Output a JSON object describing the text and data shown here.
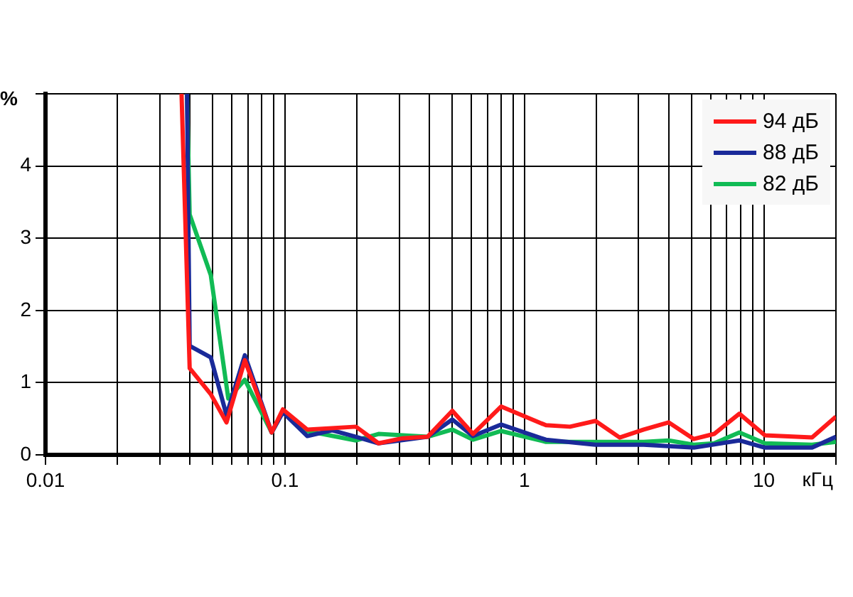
{
  "chart_data": {
    "type": "line",
    "xlabel": "кГц",
    "ylabel": "%",
    "log": "x",
    "grid": true,
    "legend": "top right",
    "marker": "none",
    "line_style": "solid",
    "xlim": [
      0.01,
      20
    ],
    "ylim": [
      0,
      5
    ],
    "xticks": [
      0.01,
      {
        "value": 0.02,
        "label": null
      },
      {
        "value": 0.03,
        "label": null
      },
      {
        "value": 0.04,
        "label": null
      },
      {
        "value": 0.05,
        "label": null
      },
      {
        "value": 0.06,
        "label": null
      },
      {
        "value": 0.07,
        "label": null
      },
      {
        "value": 0.08,
        "label": null
      },
      {
        "value": 0.09,
        "label": null
      },
      0.1,
      {
        "value": 0.2,
        "label": null
      },
      {
        "value": 0.3,
        "label": null
      },
      {
        "value": 0.4,
        "label": null
      },
      {
        "value": 0.5,
        "label": null
      },
      {
        "value": 0.6,
        "label": null
      },
      {
        "value": 0.7,
        "label": null
      },
      {
        "value": 0.8,
        "label": null
      },
      {
        "value": 0.9,
        "label": null
      },
      1,
      {
        "value": 2,
        "label": null
      },
      {
        "value": 3,
        "label": null
      },
      {
        "value": 4,
        "label": null
      },
      {
        "value": 5,
        "label": null
      },
      {
        "value": 6,
        "label": null
      },
      {
        "value": 7,
        "label": null
      },
      {
        "value": 8,
        "label": null
      },
      {
        "value": 9,
        "label": null
      },
      10,
      {
        "value": 20,
        "label": null
      }
    ],
    "yticks": [
      0,
      1,
      2,
      3,
      4,
      {
        "value": 5,
        "label": null
      }
    ],
    "series": [
      {
        "name": "94 дБ",
        "color": "#ff1a1a",
        "x": [
          0.037,
          0.04,
          0.049,
          0.057,
          0.068,
          0.088,
          0.098,
          0.124,
          0.198,
          0.246,
          0.31,
          0.394,
          0.5,
          0.61,
          0.8,
          1.23,
          1.55,
          1.98,
          2.5,
          3.15,
          4,
          5.1,
          6.2,
          7.9,
          10.1,
          15.9,
          20
        ],
        "values": [
          5,
          1.2,
          0.84,
          0.45,
          1.31,
          0.31,
          0.63,
          0.35,
          0.39,
          0.16,
          0.23,
          0.25,
          0.61,
          0.29,
          0.67,
          0.41,
          0.39,
          0.47,
          0.24,
          0.35,
          0.45,
          0.22,
          0.29,
          0.57,
          0.27,
          0.24,
          0.53
        ]
      },
      {
        "name": "88 дБ",
        "color": "#1a2a99",
        "x": [
          0.039,
          0.04,
          0.049,
          0.057,
          0.068,
          0.088,
          0.098,
          0.124,
          0.157,
          0.198,
          0.246,
          0.394,
          0.5,
          0.61,
          0.8,
          1.23,
          1.98,
          3.15,
          5.1,
          7.9,
          10.1,
          15.9,
          20
        ],
        "values": [
          5,
          1.51,
          1.35,
          0.55,
          1.38,
          0.31,
          0.59,
          0.26,
          0.34,
          0.25,
          0.16,
          0.25,
          0.49,
          0.26,
          0.42,
          0.21,
          0.14,
          0.14,
          0.1,
          0.2,
          0.1,
          0.1,
          0.25
        ]
      },
      {
        "name": "82 дБ",
        "color": "#11bb55",
        "x": [
          0.039,
          0.04,
          0.049,
          0.058,
          0.068,
          0.088,
          0.098,
          0.124,
          0.198,
          0.246,
          0.394,
          0.5,
          0.61,
          0.8,
          1.23,
          1.98,
          3.15,
          4,
          5.1,
          6.2,
          7.9,
          10.1,
          15.9,
          20
        ],
        "values": [
          5,
          3.33,
          2.49,
          0.78,
          1.04,
          0.31,
          0.6,
          0.33,
          0.2,
          0.29,
          0.25,
          0.35,
          0.21,
          0.33,
          0.18,
          0.18,
          0.18,
          0.2,
          0.14,
          0.16,
          0.31,
          0.16,
          0.14,
          0.18
        ]
      }
    ]
  }
}
